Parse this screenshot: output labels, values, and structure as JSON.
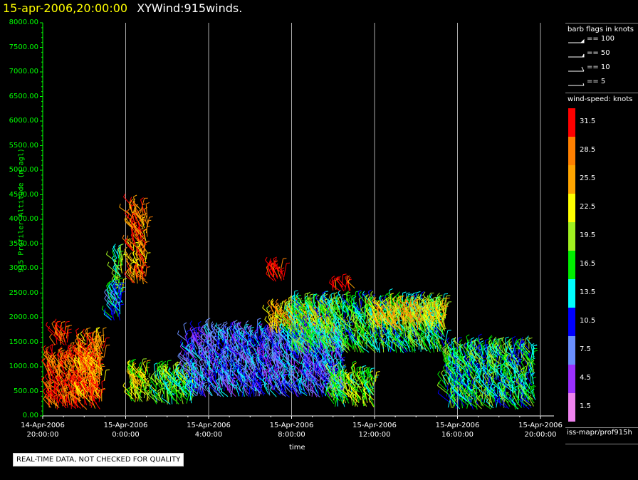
{
  "header": {
    "date": "15-apr-2006,20:00:00",
    "title": "XYWind:915winds."
  },
  "chart_data": {
    "type": "scatter",
    "title": "XYWind:915winds.",
    "xlabel": "time",
    "ylabel": "915 Profiler Altitude (m agl)",
    "ylim": [
      0,
      8000
    ],
    "yticks": [
      "8000.00",
      "7500.00",
      "7000.00",
      "6500.00",
      "6000.00",
      "5500.00",
      "5000.00",
      "4500.00",
      "4000.00",
      "3500.00",
      "3000.00",
      "2500.00",
      "2000.00",
      "1500.00",
      "1000.00",
      "500.00",
      "0.00"
    ],
    "xticks": [
      {
        "date": "14-Apr-2006",
        "time": "20:00:00"
      },
      {
        "date": "15-Apr-2006",
        "time": "0:00:00"
      },
      {
        "date": "15-Apr-2006",
        "time": "4:00:00"
      },
      {
        "date": "15-Apr-2006",
        "time": "8:00:00"
      },
      {
        "date": "15-Apr-2006",
        "time": "12:00:00"
      },
      {
        "date": "15-Apr-2006",
        "time": "16:00:00"
      },
      {
        "date": "15-Apr-2006",
        "time": "20:00:00"
      }
    ],
    "xlim_hours": [
      0,
      24
    ],
    "grid": "vertical",
    "clusters": [
      {
        "t": 0.3,
        "t_end": 2.8,
        "alt_lo": 150,
        "alt_hi": 1200,
        "speed": 30
      },
      {
        "t": 1.8,
        "t_end": 3.0,
        "alt_lo": 300,
        "alt_hi": 1500,
        "speed": 27
      },
      {
        "t": 0.6,
        "t_end": 1.2,
        "alt_lo": 1450,
        "alt_hi": 1700,
        "speed": 32
      },
      {
        "t": 3.5,
        "t_end": 3.9,
        "alt_lo": 2300,
        "alt_hi": 3300,
        "speed": 17
      },
      {
        "t": 3.3,
        "t_end": 3.8,
        "alt_lo": 1950,
        "alt_hi": 2500,
        "speed": 12
      },
      {
        "t": 4.3,
        "t_end": 5.0,
        "alt_lo": 2700,
        "alt_hi": 4300,
        "speed": 28
      },
      {
        "t": 4.3,
        "t_end": 5.1,
        "alt_lo": 300,
        "alt_hi": 900,
        "speed": 21
      },
      {
        "t": 5.5,
        "t_end": 7.2,
        "alt_lo": 250,
        "alt_hi": 900,
        "speed": 17
      },
      {
        "t": 7.0,
        "t_end": 14.5,
        "alt_lo": 400,
        "alt_hi": 1700,
        "speed": 9
      },
      {
        "t": 11.0,
        "t_end": 14.0,
        "alt_lo": 1700,
        "alt_hi": 2150,
        "speed": 24
      },
      {
        "t": 12.0,
        "t_end": 19.5,
        "alt_lo": 1300,
        "alt_hi": 2300,
        "speed": 16
      },
      {
        "t": 16.0,
        "t_end": 19.5,
        "alt_lo": 1750,
        "alt_hi": 2200,
        "speed": 24
      },
      {
        "t": 14.0,
        "t_end": 16.0,
        "alt_lo": 200,
        "alt_hi": 800,
        "speed": 18
      },
      {
        "t": 19.5,
        "t_end": 23.8,
        "alt_lo": 150,
        "alt_hi": 1400,
        "speed": 15
      },
      {
        "t": 11.0,
        "t_end": 11.6,
        "alt_lo": 2750,
        "alt_hi": 3000,
        "speed": 32
      },
      {
        "t": 14.0,
        "t_end": 15.0,
        "alt_lo": 2550,
        "alt_hi": 2650,
        "speed": 31
      }
    ],
    "legend": {
      "barb_title": "barb flags in knots",
      "barbs": [
        "== 100",
        "== 50",
        "== 10",
        "== 5"
      ],
      "colorbar_title": "wind-speed: knots",
      "colorbar_ticks": [
        "31.5",
        "28.5",
        "25.5",
        "22.5",
        "19.5",
        "16.5",
        "13.5",
        "10.5",
        "7.5",
        "4.5",
        "1.5"
      ],
      "colorbar_colors": [
        "#ff0000",
        "#ff8000",
        "#ffa500",
        "#ffff00",
        "#a0f020",
        "#00ee00",
        "#00ffff",
        "#0000ff",
        "#6a8fff",
        "#9b30ff",
        "#ee82ee"
      ]
    }
  },
  "footer": {
    "source_id": "iss-mapr/prof915h",
    "quality_note": "REAL-TIME DATA, NOT CHECKED FOR QUALITY"
  }
}
